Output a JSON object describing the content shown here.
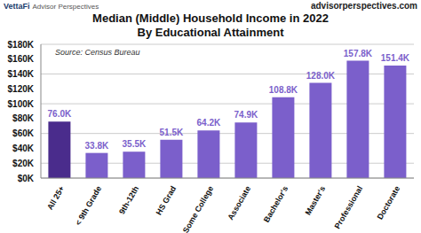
{
  "chart_data": {
    "type": "bar",
    "title": "Median (Middle) Household Income in 2022",
    "subtitle": "By Educational Attainment",
    "annotations": [
      "VettaFi",
      "Advisor Perspectives",
      "advisorperspectives.com",
      "Source: Census Bureau"
    ],
    "categories": [
      "All 25+",
      "< 9th Grade",
      "9th-12th",
      "HS Grad",
      "Some College",
      "Associate",
      "Bachelor's",
      "Master's",
      "Professional",
      "Doctorate"
    ],
    "values": [
      76.0,
      33.8,
      35.5,
      51.5,
      64.2,
      74.9,
      108.8,
      128.0,
      157.8,
      151.4
    ],
    "value_labels": [
      "76.0K",
      "33.8K",
      "35.5K",
      "51.5K",
      "64.2K",
      "74.9K",
      "108.8K",
      "128.0K",
      "157.8K",
      "151.4K"
    ],
    "colors": [
      "#4a2c8c",
      "#7b5fcb",
      "#7b5fcb",
      "#7b5fcb",
      "#7b5fcb",
      "#7b5fcb",
      "#7b5fcb",
      "#7b5fcb",
      "#7b5fcb",
      "#7b5fcb"
    ],
    "data_labels": true,
    "ylim": [
      0,
      180
    ],
    "yticks": [
      {
        "value": 0,
        "label": "$0K"
      },
      {
        "value": 20,
        "label": "$20K"
      },
      {
        "value": 40,
        "label": "$40K"
      },
      {
        "value": 60,
        "label": "$60K"
      },
      {
        "value": 80,
        "label": "$80K"
      },
      {
        "value": 100,
        "label": "$100K"
      },
      {
        "value": 120,
        "label": "$120K"
      },
      {
        "value": 140,
        "label": "$140K"
      },
      {
        "value": 160,
        "label": "$160K"
      },
      {
        "value": 180,
        "label": "$180K"
      }
    ],
    "grid": true
  }
}
